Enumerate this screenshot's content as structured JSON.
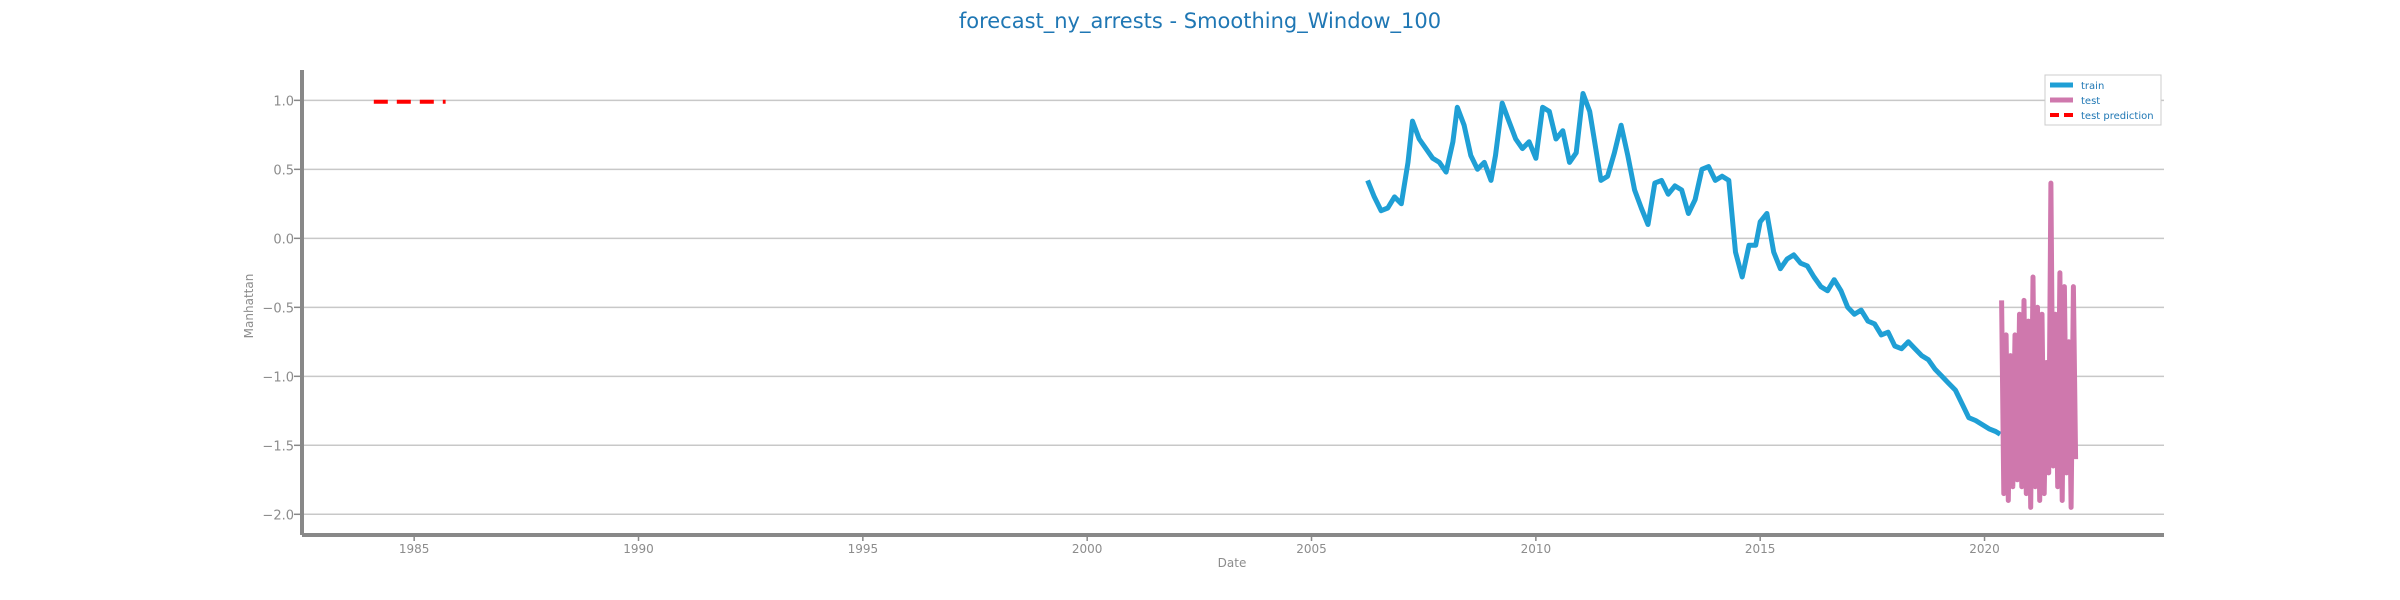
{
  "chart_data": {
    "type": "line",
    "title": "forecast_ny_arrests - Smoothing_Window_100",
    "xlabel": "Date",
    "ylabel": "Manhattan",
    "xlim": [
      1982.5,
      2024.0
    ],
    "ylim": [
      -2.15,
      1.22
    ],
    "x_ticks": [
      1985,
      1990,
      1995,
      2000,
      2005,
      2010,
      2015,
      2020
    ],
    "y_ticks": [
      1.0,
      0.5,
      0.0,
      -0.5,
      -1.0,
      -1.5,
      -2.0
    ],
    "y_tick_labels": [
      "1.0",
      "0.5",
      "0.0",
      "−0.5",
      "−1.0",
      "−1.5",
      "−2.0"
    ],
    "grid": "horizontal",
    "legend_position": "top-right",
    "legend": [
      "train",
      "test",
      "test prediction"
    ],
    "series": [
      {
        "name": "train",
        "color": "#1f9fd5",
        "style": "solid",
        "x": [
          2006.25,
          2006.4,
          2006.55,
          2006.7,
          2006.85,
          2007.0,
          2007.15,
          2007.25,
          2007.4,
          2007.55,
          2007.7,
          2007.85,
          2008.0,
          2008.15,
          2008.25,
          2008.4,
          2008.55,
          2008.7,
          2008.85,
          2009.0,
          2009.1,
          2009.25,
          2009.4,
          2009.55,
          2009.7,
          2009.85,
          2010.0,
          2010.15,
          2010.3,
          2010.45,
          2010.6,
          2010.75,
          2010.9,
          2011.05,
          2011.2,
          2011.3,
          2011.45,
          2011.6,
          2011.75,
          2011.9,
          2012.05,
          2012.2,
          2012.35,
          2012.5,
          2012.65,
          2012.8,
          2012.95,
          2013.1,
          2013.25,
          2013.4,
          2013.55,
          2013.7,
          2013.85,
          2014.0,
          2014.15,
          2014.3,
          2014.45,
          2014.6,
          2014.75,
          2014.9,
          2015.0,
          2015.15,
          2015.3,
          2015.45,
          2015.6,
          2015.75,
          2015.9,
          2016.05,
          2016.2,
          2016.35,
          2016.5,
          2016.65,
          2016.8,
          2016.95,
          2017.1,
          2017.25,
          2017.4,
          2017.55,
          2017.7,
          2017.85,
          2018.0,
          2018.15,
          2018.3,
          2018.45,
          2018.6,
          2018.75,
          2018.9,
          2019.05,
          2019.2,
          2019.35,
          2019.5,
          2019.65,
          2019.8,
          2019.95,
          2020.1,
          2020.25,
          2020.35
        ],
        "y": [
          0.42,
          0.3,
          0.2,
          0.22,
          0.3,
          0.25,
          0.55,
          0.85,
          0.72,
          0.65,
          0.58,
          0.55,
          0.48,
          0.7,
          0.95,
          0.82,
          0.6,
          0.5,
          0.55,
          0.42,
          0.6,
          0.98,
          0.85,
          0.72,
          0.65,
          0.7,
          0.58,
          0.95,
          0.92,
          0.72,
          0.78,
          0.55,
          0.62,
          1.05,
          0.92,
          0.72,
          0.42,
          0.45,
          0.62,
          0.82,
          0.6,
          0.35,
          0.22,
          0.1,
          0.4,
          0.42,
          0.32,
          0.38,
          0.35,
          0.18,
          0.28,
          0.5,
          0.52,
          0.42,
          0.45,
          0.42,
          -0.1,
          -0.28,
          -0.05,
          -0.05,
          0.12,
          0.18,
          -0.1,
          -0.22,
          -0.15,
          -0.12,
          -0.18,
          -0.2,
          -0.28,
          -0.35,
          -0.38,
          -0.3,
          -0.38,
          -0.5,
          -0.55,
          -0.52,
          -0.6,
          -0.62,
          -0.7,
          -0.68,
          -0.78,
          -0.8,
          -0.75,
          -0.8,
          -0.85,
          -0.88,
          -0.95,
          -1.0,
          -1.05,
          -1.1,
          -1.2,
          -1.3,
          -1.32,
          -1.35,
          -1.38,
          -1.4,
          -1.42
        ]
      },
      {
        "name": "test",
        "color": "#cf78ad",
        "style": "solid",
        "x": [
          2020.38,
          2020.43,
          2020.48,
          2020.53,
          2020.58,
          2020.63,
          2020.68,
          2020.73,
          2020.78,
          2020.83,
          2020.88,
          2020.93,
          2020.98,
          2021.03,
          2021.08,
          2021.13,
          2021.18,
          2021.23,
          2021.28,
          2021.33,
          2021.38,
          2021.43,
          2021.48,
          2021.53,
          2021.58,
          2021.63,
          2021.68,
          2021.73,
          2021.78,
          2021.83,
          2021.88,
          2021.93,
          2021.98,
          2022.03
        ],
        "y": [
          -0.45,
          -1.85,
          -0.7,
          -1.9,
          -0.85,
          -1.8,
          -0.7,
          -1.75,
          -0.55,
          -1.8,
          -0.45,
          -1.85,
          -0.6,
          -1.95,
          -0.28,
          -1.8,
          -0.5,
          -1.9,
          -0.55,
          -1.85,
          -0.9,
          -1.7,
          0.4,
          -1.65,
          -0.55,
          -1.8,
          -0.25,
          -1.9,
          -0.35,
          -1.7,
          -0.75,
          -1.95,
          -0.35,
          -1.6
        ]
      },
      {
        "name": "test prediction",
        "color": "#ff0000",
        "style": "dashed",
        "x": [
          1984.1,
          1985.7
        ],
        "y": [
          0.99,
          0.99
        ]
      }
    ]
  }
}
